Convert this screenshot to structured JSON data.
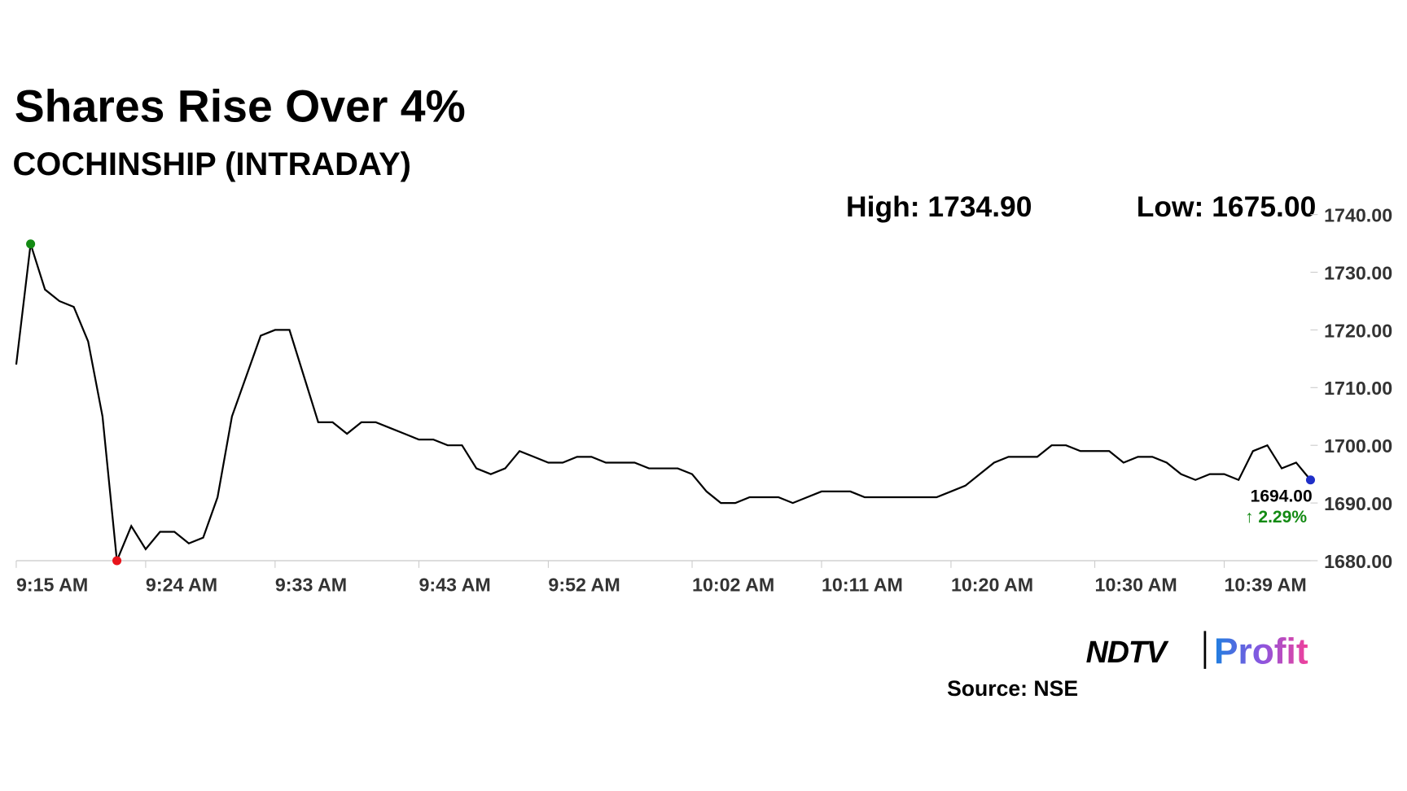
{
  "chart_data": {
    "type": "line",
    "title": "Shares Rise Over 4%",
    "subtitle": "COCHINSHIP (INTRADAY)",
    "high_label": "High: 1734.90",
    "low_label": "Low: 1675.00",
    "last_label": "1694.00",
    "change_label": "↑ 2.29%",
    "source": "Source: NSE",
    "brand": "NDTV",
    "brand_product": "Profit",
    "x": [
      0,
      1,
      2,
      3,
      4,
      5,
      6,
      7,
      8,
      9,
      10,
      11,
      12,
      13,
      14,
      15,
      16,
      17,
      18,
      19,
      20,
      21,
      22,
      23,
      24,
      25,
      26,
      27,
      28,
      29,
      30,
      31,
      32,
      33,
      34,
      35,
      36,
      37,
      38,
      39,
      40,
      41,
      42,
      43,
      44,
      45,
      46,
      47,
      48,
      49,
      50,
      51,
      52,
      53,
      54,
      55,
      56,
      57,
      58,
      59,
      60,
      61,
      62,
      63,
      64,
      65,
      66,
      67,
      68,
      69,
      70,
      71,
      72,
      73,
      74,
      75,
      76,
      77,
      78,
      79,
      80,
      81,
      82,
      83,
      84,
      85,
      86,
      87,
      88,
      89,
      90
    ],
    "series": [
      {
        "name": "COCHINSHIP",
        "color": "#000000",
        "values": [
          1714,
          1734.9,
          1727,
          1725,
          1724,
          1718,
          1705,
          1680,
          1686,
          1682,
          1685,
          1685,
          1683,
          1684,
          1691,
          1705,
          1712,
          1719,
          1720,
          1720,
          1712,
          1704,
          1704,
          1702,
          1704,
          1704,
          1703,
          1702,
          1701,
          1701,
          1700,
          1700,
          1696,
          1695,
          1696,
          1699,
          1698,
          1697,
          1697,
          1698,
          1698,
          1697,
          1697,
          1697,
          1696,
          1696,
          1696,
          1695,
          1692,
          1690,
          1690,
          1691,
          1691,
          1691,
          1690,
          1691,
          1692,
          1692,
          1692,
          1691,
          1691,
          1691,
          1691,
          1691,
          1691,
          1692,
          1693,
          1695,
          1697,
          1698,
          1698,
          1698,
          1700,
          1700,
          1699,
          1699,
          1699,
          1697,
          1698,
          1698,
          1697,
          1695,
          1694,
          1695,
          1695,
          1694,
          1699,
          1700,
          1696,
          1697,
          1694
        ]
      }
    ],
    "xlim": [
      0,
      90
    ],
    "xticks": [
      {
        "value": 0,
        "label": "9:15 AM"
      },
      {
        "value": 9,
        "label": "9:24 AM"
      },
      {
        "value": 18,
        "label": "9:33 AM"
      },
      {
        "value": 28,
        "label": "9:43 AM"
      },
      {
        "value": 37,
        "label": "9:52 AM"
      },
      {
        "value": 47,
        "label": "10:02 AM"
      },
      {
        "value": 56,
        "label": "10:11 AM"
      },
      {
        "value": 65,
        "label": "10:20 AM"
      },
      {
        "value": 75,
        "label": "10:30 AM"
      },
      {
        "value": 84,
        "label": "10:39 AM"
      }
    ],
    "ylim": [
      1680,
      1740
    ],
    "yticks": [
      {
        "value": 1680,
        "label": "1680.00"
      },
      {
        "value": 1690,
        "label": "1690.00"
      },
      {
        "value": 1700,
        "label": "1700.00"
      },
      {
        "value": 1710,
        "label": "1710.00"
      },
      {
        "value": 1720,
        "label": "1720.00"
      },
      {
        "value": 1730,
        "label": "1730.00"
      },
      {
        "value": 1740,
        "label": "1740.00"
      }
    ],
    "grid": false,
    "marker_colors": {
      "high": "#138a13",
      "low": "#e8131b",
      "last": "#1f2fc8"
    },
    "change_color": "#138a13"
  }
}
